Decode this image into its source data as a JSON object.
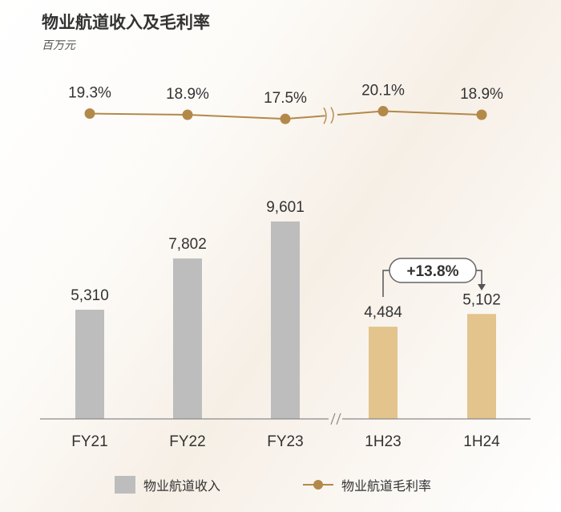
{
  "title": "物业航道收入及毛利率",
  "unit": "百万元",
  "colors": {
    "bar_annual": "#bdbdbd",
    "bar_half": "#e2c48c",
    "line": "#b3894a",
    "axis": "#8c8c8c",
    "text": "#333333"
  },
  "chart_data": {
    "type": "bar",
    "categories": [
      "FY21",
      "FY22",
      "FY23",
      "1H23",
      "1H24"
    ],
    "series": [
      {
        "name": "物业航道收入",
        "type": "bar",
        "values": [
          5310,
          7802,
          9601,
          4484,
          5102
        ],
        "labels": [
          "5,310",
          "7,802",
          "9,601",
          "4,484",
          "5,102"
        ]
      },
      {
        "name": "物业航道毛利率",
        "type": "line",
        "values": [
          19.3,
          18.9,
          17.5,
          20.1,
          18.9
        ],
        "labels": [
          "19.3%",
          "18.9%",
          "17.5%",
          "20.1%",
          "18.9%"
        ]
      }
    ],
    "axis_break_between": [
      "FY23",
      "1H23"
    ],
    "annotation": {
      "text": "+13.8%",
      "from": "1H23",
      "to": "1H24"
    },
    "legend_position": "bottom"
  },
  "legend": {
    "bar_label": "物业航道收入",
    "line_label": "物业航道毛利率"
  }
}
